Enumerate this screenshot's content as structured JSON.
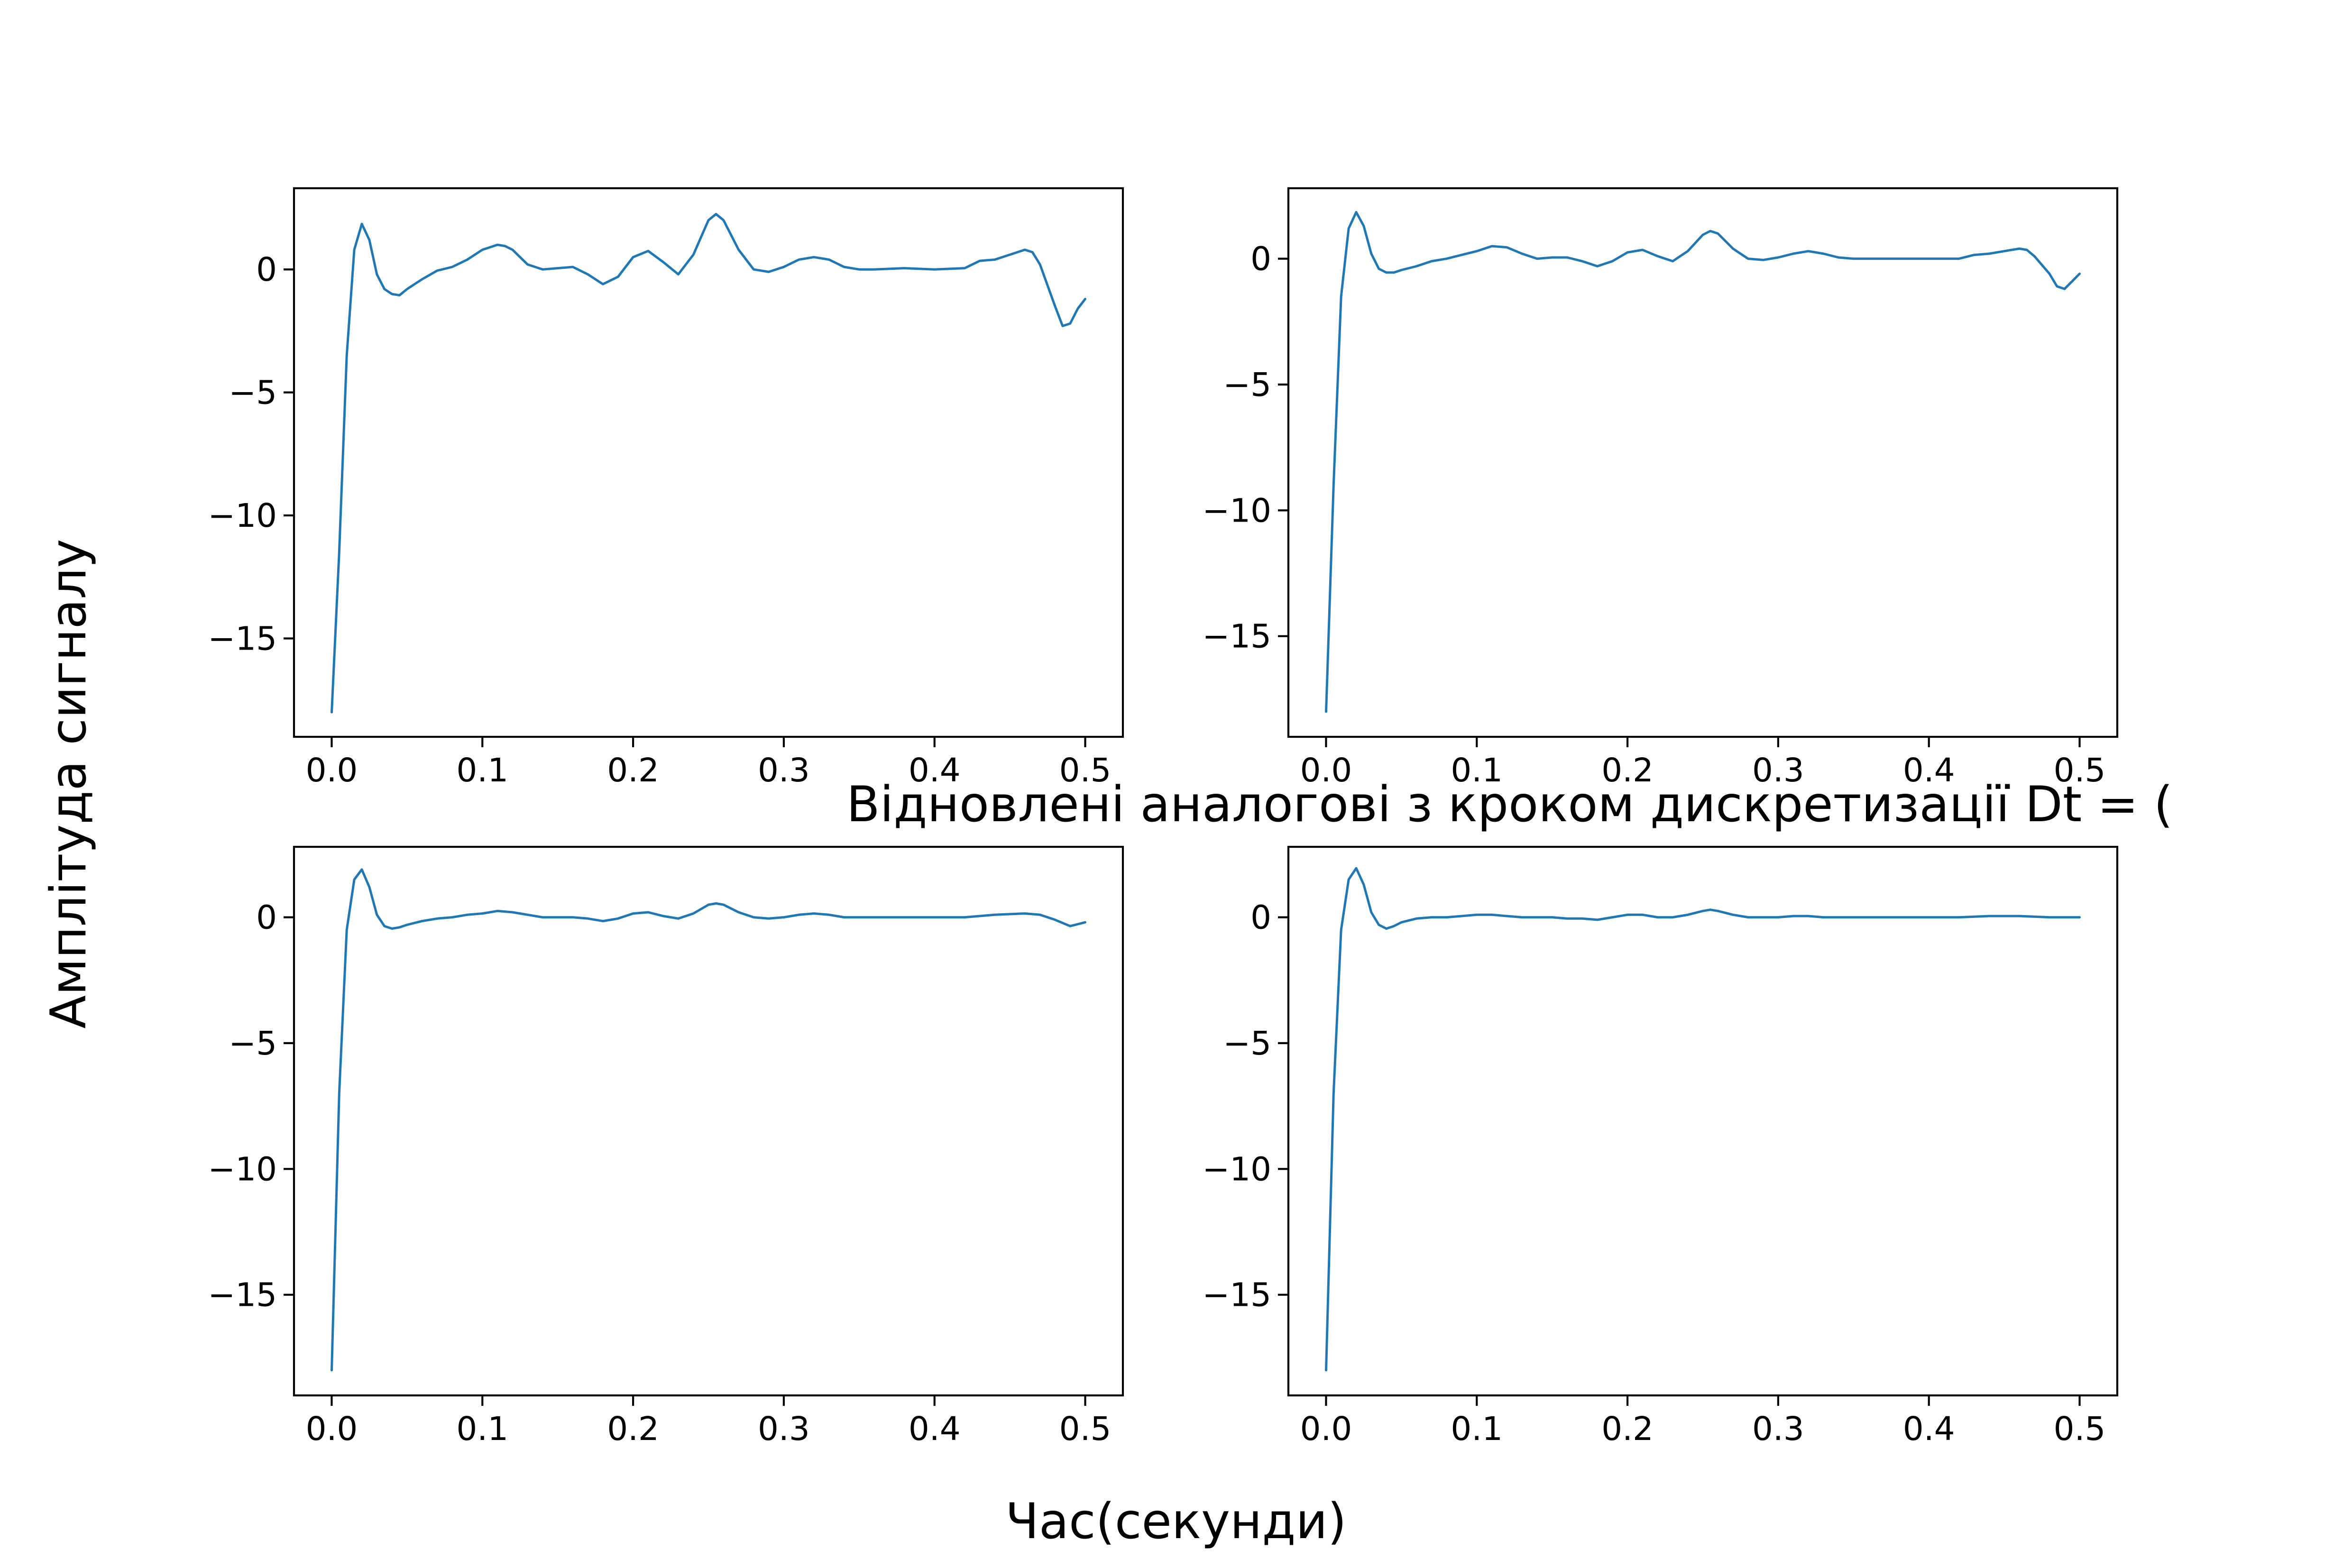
{
  "figure": {
    "supxlabel": "Час(секунди)",
    "supylabel": "Амплітуда сигналу",
    "suptitle": "Відновлені аналогові з кроком дискретизації Dt = ("
  },
  "chart_data": [
    {
      "type": "line",
      "title": "",
      "xlabel": "",
      "ylabel": "",
      "xlim": [
        -0.025,
        0.525
      ],
      "ylim": [
        -19,
        3.3
      ],
      "xticks": [
        0.0,
        0.1,
        0.2,
        0.3,
        0.4,
        0.5
      ],
      "xtick_labels": [
        "0.0",
        "0.1",
        "0.2",
        "0.3",
        "0.4",
        "0.5"
      ],
      "yticks": [
        0,
        -5,
        -10,
        -15
      ],
      "ytick_labels": [
        "0",
        "−5",
        "−10",
        "−15"
      ],
      "grid": false,
      "series": [
        {
          "color": "#1f77b4",
          "x": [
            0.0,
            0.005,
            0.01,
            0.015,
            0.02,
            0.025,
            0.03,
            0.035,
            0.04,
            0.045,
            0.05,
            0.06,
            0.07,
            0.08,
            0.09,
            0.1,
            0.11,
            0.115,
            0.12,
            0.13,
            0.14,
            0.15,
            0.16,
            0.17,
            0.18,
            0.19,
            0.2,
            0.21,
            0.22,
            0.23,
            0.24,
            0.25,
            0.255,
            0.26,
            0.27,
            0.28,
            0.29,
            0.3,
            0.31,
            0.32,
            0.33,
            0.34,
            0.35,
            0.36,
            0.38,
            0.4,
            0.42,
            0.43,
            0.44,
            0.45,
            0.46,
            0.465,
            0.47,
            0.48,
            0.485,
            0.49,
            0.495,
            0.5
          ],
          "y": [
            -18.0,
            -11.5,
            -3.5,
            0.8,
            1.85,
            1.2,
            -0.2,
            -0.8,
            -1.0,
            -1.05,
            -0.8,
            -0.4,
            -0.05,
            0.1,
            0.4,
            0.8,
            1.0,
            0.95,
            0.8,
            0.2,
            0.0,
            0.05,
            0.1,
            -0.2,
            -0.6,
            -0.3,
            0.5,
            0.75,
            0.3,
            -0.2,
            0.6,
            2.0,
            2.25,
            2.0,
            0.8,
            0.0,
            -0.1,
            0.1,
            0.4,
            0.5,
            0.4,
            0.1,
            0.0,
            0.0,
            0.05,
            0.0,
            0.05,
            0.35,
            0.4,
            0.6,
            0.8,
            0.7,
            0.2,
            -1.5,
            -2.3,
            -2.2,
            -1.6,
            -1.2
          ]
        }
      ]
    },
    {
      "type": "line",
      "title": "",
      "xlabel": "",
      "ylabel": "",
      "xlim": [
        -0.025,
        0.525
      ],
      "ylim": [
        -19,
        2.8
      ],
      "xticks": [
        0.0,
        0.1,
        0.2,
        0.3,
        0.4,
        0.5
      ],
      "xtick_labels": [
        "0.0",
        "0.1",
        "0.2",
        "0.3",
        "0.4",
        "0.5"
      ],
      "yticks": [
        0,
        -5,
        -10,
        -15
      ],
      "ytick_labels": [
        "0",
        "−5",
        "−10",
        "−15"
      ],
      "grid": false,
      "series": [
        {
          "color": "#1f77b4",
          "x": [
            0.0,
            0.005,
            0.01,
            0.015,
            0.02,
            0.025,
            0.03,
            0.035,
            0.04,
            0.045,
            0.05,
            0.06,
            0.07,
            0.08,
            0.09,
            0.1,
            0.11,
            0.12,
            0.13,
            0.14,
            0.15,
            0.16,
            0.17,
            0.18,
            0.19,
            0.2,
            0.21,
            0.22,
            0.23,
            0.24,
            0.25,
            0.255,
            0.26,
            0.27,
            0.28,
            0.29,
            0.3,
            0.31,
            0.32,
            0.33,
            0.34,
            0.35,
            0.36,
            0.38,
            0.4,
            0.42,
            0.43,
            0.44,
            0.45,
            0.46,
            0.465,
            0.47,
            0.48,
            0.485,
            0.49,
            0.495,
            0.5
          ],
          "y": [
            -18.0,
            -9.0,
            -1.5,
            1.2,
            1.85,
            1.3,
            0.2,
            -0.4,
            -0.55,
            -0.55,
            -0.45,
            -0.3,
            -0.1,
            0.0,
            0.15,
            0.3,
            0.5,
            0.45,
            0.2,
            0.0,
            0.05,
            0.05,
            -0.1,
            -0.3,
            -0.1,
            0.25,
            0.35,
            0.1,
            -0.1,
            0.3,
            0.95,
            1.1,
            1.0,
            0.4,
            0.0,
            -0.05,
            0.05,
            0.2,
            0.3,
            0.2,
            0.05,
            0.0,
            0.0,
            0.0,
            0.0,
            0.0,
            0.15,
            0.2,
            0.3,
            0.4,
            0.35,
            0.1,
            -0.6,
            -1.1,
            -1.2,
            -0.9,
            -0.6
          ]
        }
      ]
    },
    {
      "type": "line",
      "title": "",
      "xlabel": "",
      "ylabel": "",
      "xlim": [
        -0.025,
        0.525
      ],
      "ylim": [
        -19,
        2.8
      ],
      "xticks": [
        0.0,
        0.1,
        0.2,
        0.3,
        0.4,
        0.5
      ],
      "xtick_labels": [
        "0.0",
        "0.1",
        "0.2",
        "0.3",
        "0.4",
        "0.5"
      ],
      "yticks": [
        0,
        -5,
        -10,
        -15
      ],
      "ytick_labels": [
        "0",
        "−5",
        "−10",
        "−15"
      ],
      "grid": false,
      "series": [
        {
          "color": "#1f77b4",
          "x": [
            0.0,
            0.005,
            0.01,
            0.015,
            0.02,
            0.025,
            0.03,
            0.035,
            0.04,
            0.045,
            0.05,
            0.06,
            0.07,
            0.08,
            0.09,
            0.1,
            0.11,
            0.12,
            0.13,
            0.14,
            0.15,
            0.16,
            0.17,
            0.18,
            0.19,
            0.2,
            0.21,
            0.22,
            0.23,
            0.24,
            0.25,
            0.255,
            0.26,
            0.27,
            0.28,
            0.29,
            0.3,
            0.31,
            0.32,
            0.33,
            0.34,
            0.35,
            0.36,
            0.38,
            0.4,
            0.42,
            0.44,
            0.46,
            0.47,
            0.48,
            0.49,
            0.5
          ],
          "y": [
            -18.0,
            -7.0,
            -0.5,
            1.5,
            1.9,
            1.2,
            0.1,
            -0.35,
            -0.45,
            -0.4,
            -0.3,
            -0.15,
            -0.05,
            0.0,
            0.1,
            0.15,
            0.25,
            0.2,
            0.1,
            0.0,
            0.0,
            0.0,
            -0.05,
            -0.15,
            -0.05,
            0.15,
            0.2,
            0.05,
            -0.05,
            0.15,
            0.5,
            0.55,
            0.5,
            0.2,
            0.0,
            -0.05,
            0.0,
            0.1,
            0.15,
            0.1,
            0.0,
            0.0,
            0.0,
            0.0,
            0.0,
            0.0,
            0.1,
            0.15,
            0.1,
            -0.1,
            -0.35,
            -0.2
          ]
        }
      ]
    },
    {
      "type": "line",
      "title": "",
      "xlabel": "",
      "ylabel": "",
      "xlim": [
        -0.025,
        0.525
      ],
      "ylim": [
        -19,
        2.8
      ],
      "xticks": [
        0.0,
        0.1,
        0.2,
        0.3,
        0.4,
        0.5
      ],
      "xtick_labels": [
        "0.0",
        "0.1",
        "0.2",
        "0.3",
        "0.4",
        "0.5"
      ],
      "yticks": [
        0,
        -5,
        -10,
        -15
      ],
      "ytick_labels": [
        "0",
        "−5",
        "−10",
        "−15"
      ],
      "grid": false,
      "series": [
        {
          "color": "#1f77b4",
          "x": [
            0.0,
            0.005,
            0.01,
            0.015,
            0.02,
            0.025,
            0.03,
            0.035,
            0.04,
            0.045,
            0.05,
            0.06,
            0.07,
            0.08,
            0.09,
            0.1,
            0.11,
            0.12,
            0.13,
            0.14,
            0.15,
            0.16,
            0.17,
            0.18,
            0.19,
            0.2,
            0.21,
            0.22,
            0.23,
            0.24,
            0.25,
            0.255,
            0.26,
            0.27,
            0.28,
            0.29,
            0.3,
            0.31,
            0.32,
            0.33,
            0.34,
            0.36,
            0.38,
            0.4,
            0.42,
            0.44,
            0.46,
            0.48,
            0.5
          ],
          "y": [
            -18.0,
            -7.0,
            -0.5,
            1.5,
            1.95,
            1.3,
            0.2,
            -0.3,
            -0.45,
            -0.35,
            -0.2,
            -0.05,
            0.0,
            0.0,
            0.05,
            0.1,
            0.1,
            0.05,
            0.0,
            0.0,
            0.0,
            -0.05,
            -0.05,
            -0.1,
            0.0,
            0.1,
            0.1,
            0.0,
            0.0,
            0.1,
            0.25,
            0.3,
            0.25,
            0.1,
            0.0,
            0.0,
            0.0,
            0.05,
            0.05,
            0.0,
            0.0,
            0.0,
            0.0,
            0.0,
            0.0,
            0.05,
            0.05,
            0.0,
            0.0
          ]
        }
      ]
    }
  ]
}
